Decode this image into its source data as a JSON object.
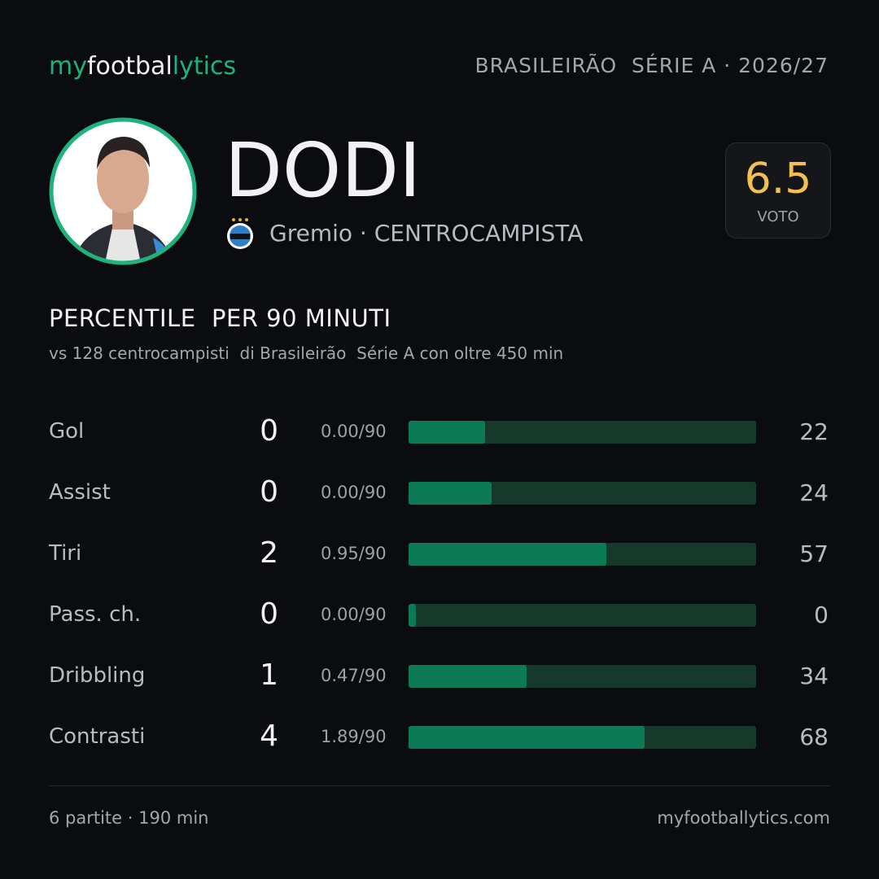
{
  "header": {
    "logo": [
      "my",
      "footbal",
      "lytics"
    ],
    "league": "BRASILEIRÃO  SÉRIE A · 2026/27"
  },
  "player": {
    "name": "DODI",
    "team_line": "Gremio · CENTROCAMPISTA",
    "rating": 6.5,
    "rating_label": "VOTO"
  },
  "section": {
    "title": "PERCENTILE  PER 90 MINUTI",
    "subtitle": "vs 128 centrocampisti  di Brasileirão  Série A con oltre 450 min"
  },
  "stats": {
    "xlim": [
      0,
      100
    ],
    "color": "#0b7a55",
    "track_color": "#17392b",
    "rows": [
      {
        "label": "Gol",
        "total": 0,
        "per90": "0.00/90",
        "percentile": 22
      },
      {
        "label": "Assist",
        "total": 0,
        "per90": "0.00/90",
        "percentile": 24
      },
      {
        "label": "Tiri",
        "total": 2,
        "per90": "0.95/90",
        "percentile": 57
      },
      {
        "label": "Pass. ch.",
        "total": 0,
        "per90": "0.00/90",
        "percentile": 0
      },
      {
        "label": "Dribbling",
        "total": 1,
        "per90": "0.47/90",
        "percentile": 34
      },
      {
        "label": "Contrasti",
        "total": 4,
        "per90": "1.89/90",
        "percentile": 68
      }
    ]
  },
  "footer": {
    "left": "6 partite · 190 min",
    "right": "myfootballytics.com"
  }
}
